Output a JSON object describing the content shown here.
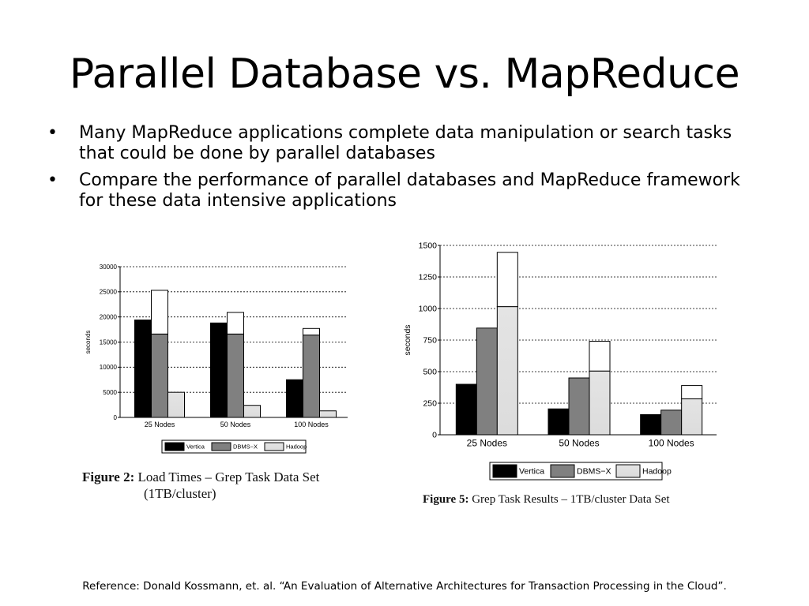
{
  "slide": {
    "title": "Parallel Database vs. MapReduce",
    "bullet_symbol": "•",
    "bullets": [
      "Many MapReduce applications complete data manipulation or search tasks that could be done by parallel databases",
      "Compare the performance of parallel databases and MapReduce framework for these data intensive applications"
    ],
    "reference": "Reference: Donald Kossmann, et. al. “An Evaluation of Alternative Architectures for Transaction Processing in the Cloud”."
  },
  "figures": [
    {
      "caption_label": "Figure 2:",
      "caption_text": "Load Times – Grep Task Data Set",
      "caption_text2": "(1TB/cluster)"
    },
    {
      "caption_label": "Figure 5:",
      "caption_text": "Grep Task Results – 1TB/cluster Data Set",
      "caption_text2": ""
    }
  ],
  "chart_data": [
    {
      "type": "bar",
      "categories": [
        "25 Nodes",
        "50 Nodes",
        "100 Nodes"
      ],
      "series": [
        {
          "name": "Vertica",
          "values": [
            19400,
            18800,
            7500
          ],
          "stacked_top": [
            null,
            null,
            null
          ],
          "color": "#000000"
        },
        {
          "name": "DBMS−X",
          "values": [
            16600,
            16600,
            16400
          ],
          "stacked_top": [
            25300,
            20900,
            17700
          ],
          "color": "#808080"
        },
        {
          "name": "Hadoop",
          "values": [
            5000,
            2400,
            1300
          ],
          "stacked_top": [
            null,
            null,
            null
          ],
          "color": "#e0e0e0"
        }
      ],
      "ylabel": "seconds",
      "ylim": [
        0,
        30000
      ],
      "yticks": [
        0,
        5000,
        10000,
        15000,
        20000,
        25000,
        30000
      ],
      "grid": true,
      "legend": "bottom"
    },
    {
      "type": "bar",
      "categories": [
        "25 Nodes",
        "50 Nodes",
        "100 Nodes"
      ],
      "series": [
        {
          "name": "Vertica",
          "values": [
            400,
            205,
            160
          ],
          "stacked_top": [
            null,
            null,
            null
          ],
          "color": "#000000"
        },
        {
          "name": "DBMS−X",
          "values": [
            845,
            450,
            195
          ],
          "stacked_top": [
            null,
            null,
            null
          ],
          "color": "#808080"
        },
        {
          "name": "Hadoop",
          "values": [
            1015,
            505,
            285
          ],
          "stacked_top": [
            1445,
            740,
            390
          ],
          "color": "#e0e0e0"
        }
      ],
      "ylabel": "seconds",
      "ylim": [
        0,
        1500
      ],
      "yticks": [
        0,
        250,
        500,
        750,
        1000,
        1250,
        1500
      ],
      "grid": true,
      "legend": "bottom"
    }
  ]
}
